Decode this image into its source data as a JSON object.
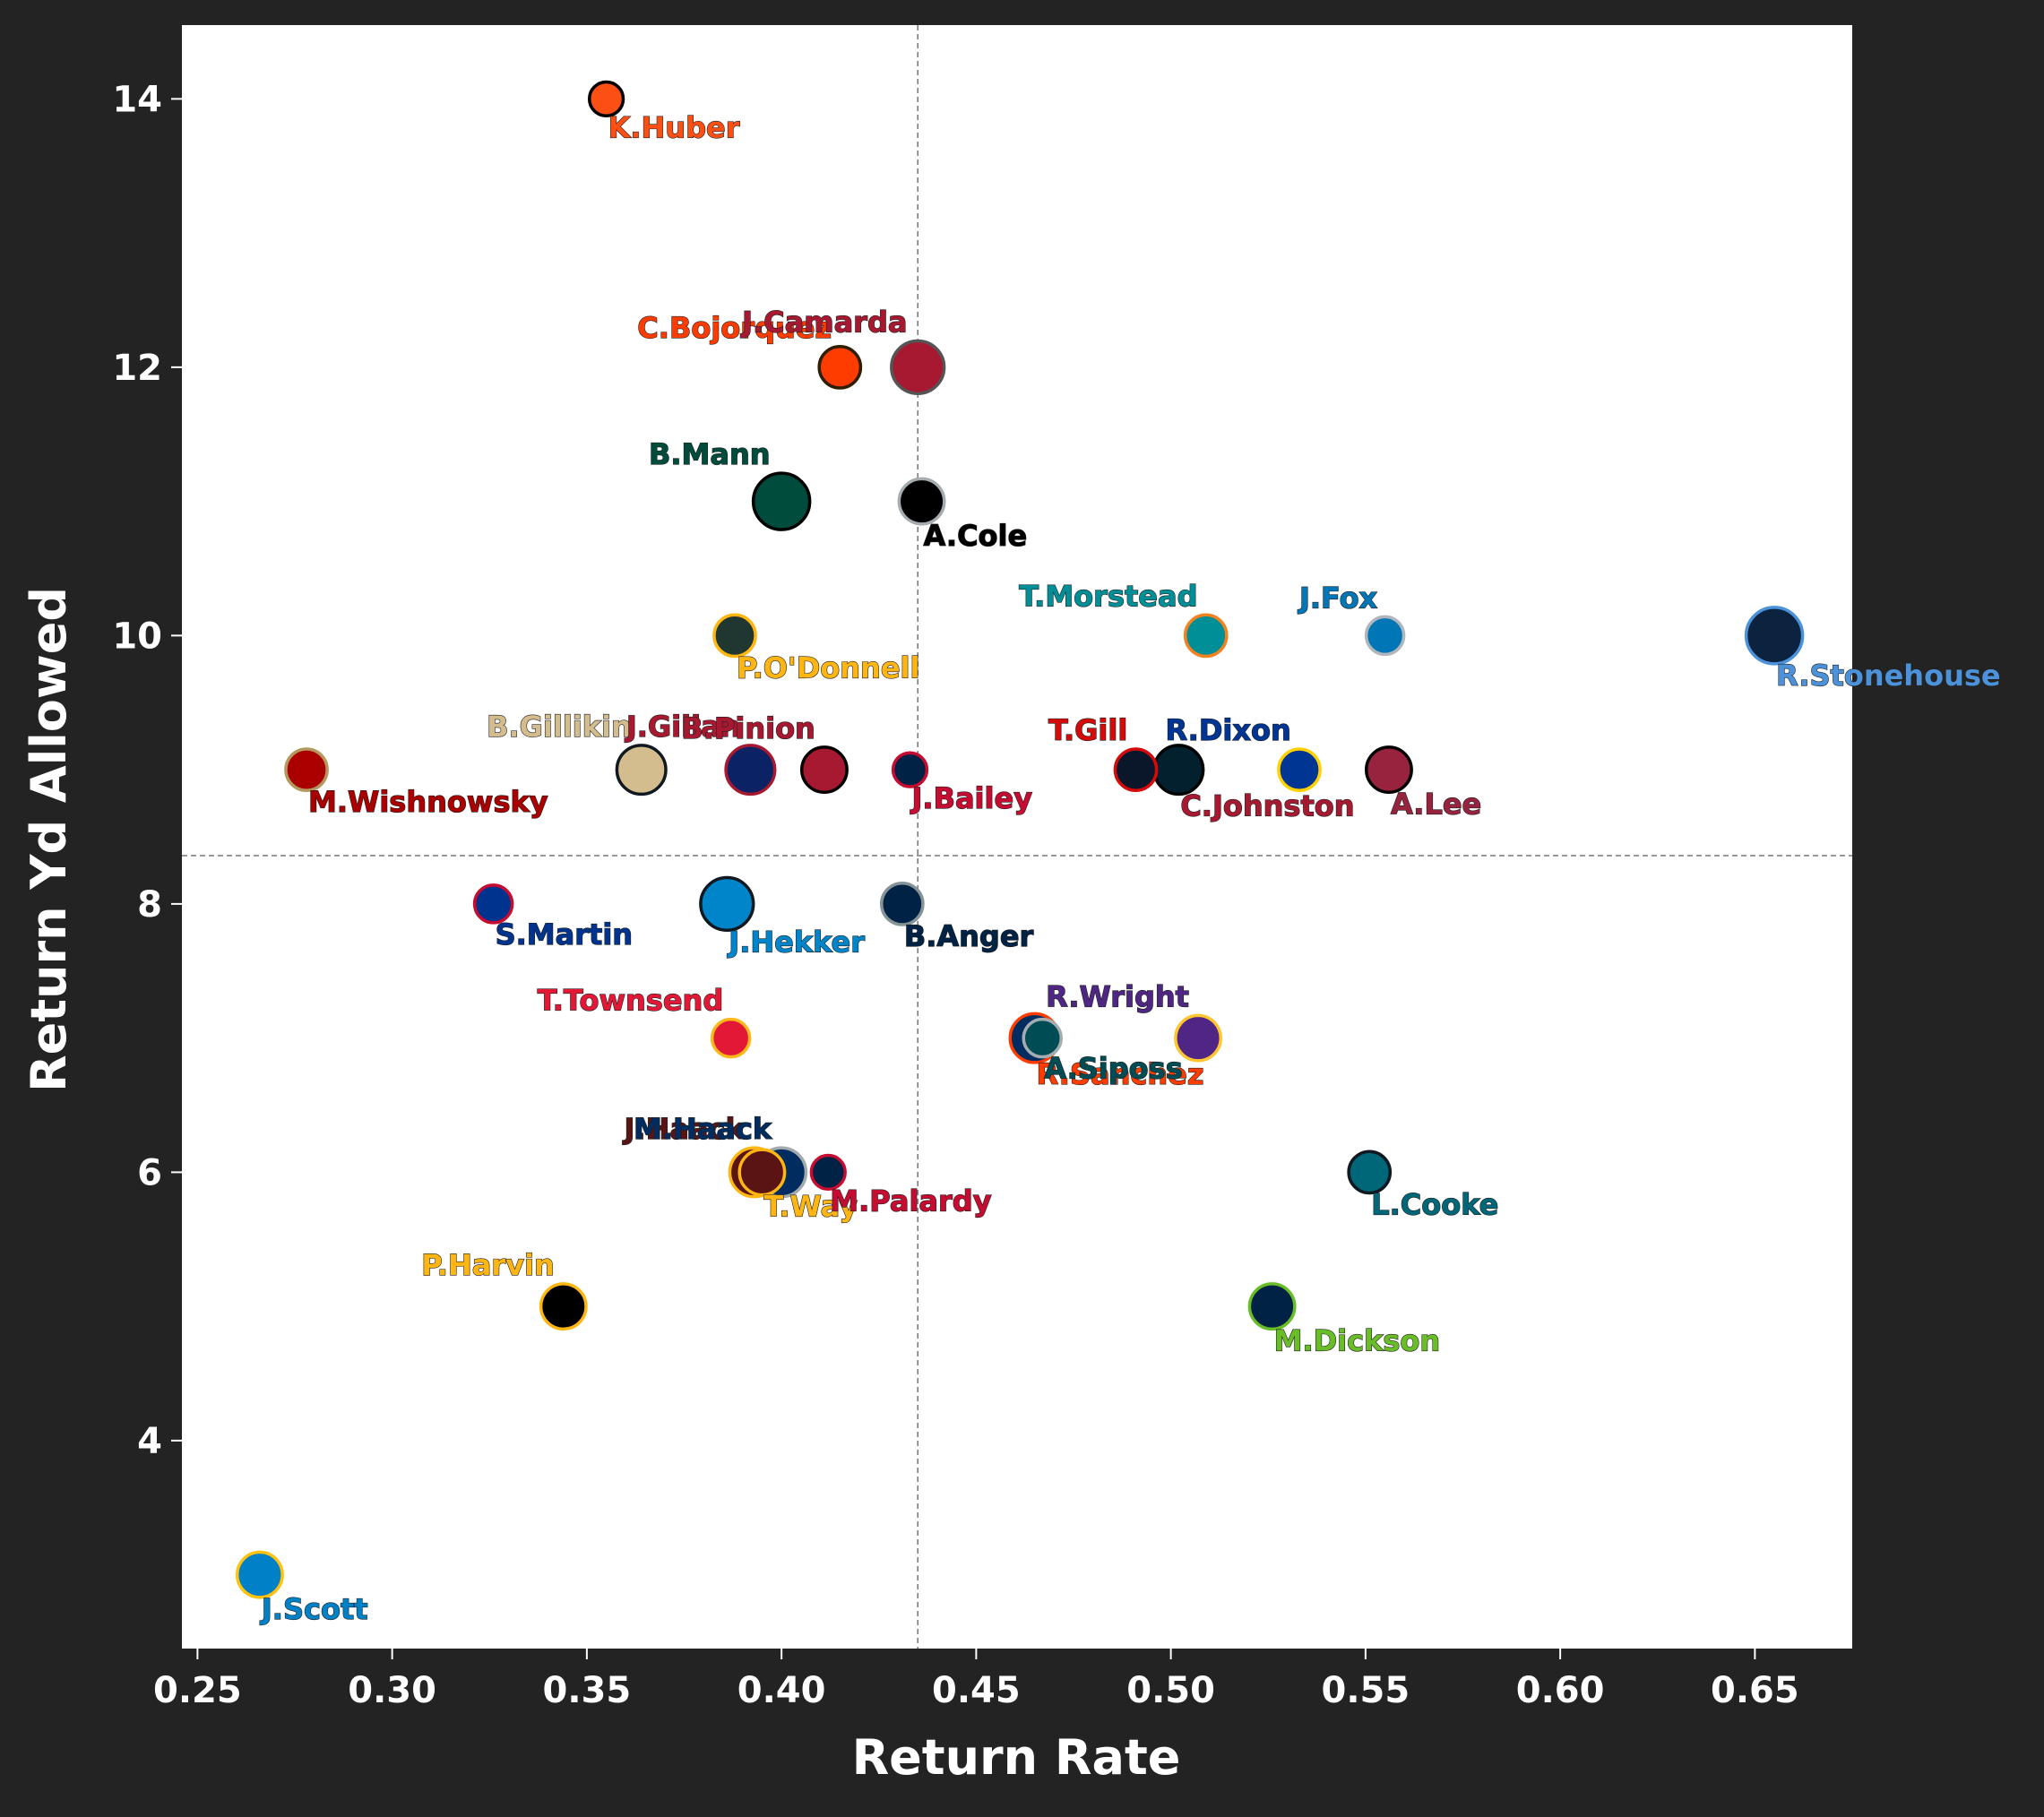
{
  "colors": {
    "figure_background": "#232323",
    "plot_background": "#ffffff",
    "axis_text": "#ffffff",
    "reference_line": "#777777"
  },
  "chart_data": {
    "type": "scatter",
    "title": "",
    "xlabel": "Return Rate",
    "ylabel": "Return Yd Allowed",
    "xlim": [
      0.246,
      0.675
    ],
    "ylim": [
      2.45,
      14.55
    ],
    "xticks": [
      0.25,
      0.3,
      0.35,
      0.4,
      0.45,
      0.5,
      0.55,
      0.6,
      0.65
    ],
    "xtick_labels": [
      "0.25",
      "0.30",
      "0.35",
      "0.40",
      "0.45",
      "0.50",
      "0.55",
      "0.60",
      "0.65"
    ],
    "yticks": [
      4,
      6,
      8,
      10,
      12,
      14
    ],
    "ytick_labels": [
      "4",
      "6",
      "8",
      "10",
      "12",
      "14"
    ],
    "grid": false,
    "reference_lines": {
      "x": 0.435,
      "y": 8.36
    },
    "points": [
      {
        "label": "K.Huber",
        "x": 0.355,
        "y": 14.0,
        "fill": "#FB4F14",
        "edge": "#000000",
        "label_color": "#FB4F14",
        "size": 9,
        "label_pos": "below"
      },
      {
        "label": "C.Bojorquez",
        "x": 0.415,
        "y": 12.0,
        "fill": "#FF3C00",
        "edge": "#311D00",
        "label_color": "#FF3C00",
        "size": 11,
        "label_pos": "above"
      },
      {
        "label": "J.Camarda",
        "x": 0.435,
        "y": 12.0,
        "fill": "#A71930",
        "edge": "#555555",
        "label_color": "#A71930",
        "size": 14,
        "label_pos": "above"
      },
      {
        "label": "B.Mann",
        "x": 0.4,
        "y": 11.0,
        "fill": "#004C3C",
        "edge": "#000000",
        "label_color": "#004C3C",
        "size": 15,
        "label_pos": "above"
      },
      {
        "label": "A.Cole",
        "x": 0.436,
        "y": 11.0,
        "fill": "#000000",
        "edge": "#A5ACAF",
        "label_color": "#000000",
        "size": 12,
        "label_pos": "below"
      },
      {
        "label": "P.O'Donnell",
        "x": 0.388,
        "y": 10.0,
        "fill": "#203731",
        "edge": "#FFB612",
        "label_color": "#FFB612",
        "size": 11,
        "label_pos": "below"
      },
      {
        "label": "T.Morstead",
        "x": 0.509,
        "y": 10.0,
        "fill": "#008E97",
        "edge": "#F58220",
        "label_color": "#008E97",
        "size": 11,
        "label_pos": "above"
      },
      {
        "label": "J.Fox",
        "x": 0.555,
        "y": 10.0,
        "fill": "#0076B6",
        "edge": "#B0B7BC",
        "label_color": "#0076B6",
        "size": 10,
        "label_pos": "above"
      },
      {
        "label": "R.Stonehouse",
        "x": 0.655,
        "y": 10.0,
        "fill": "#0C2340",
        "edge": "#4B92DB",
        "label_color": "#4B92DB",
        "size": 15,
        "label_pos": "below"
      },
      {
        "label": "M.Wishnowsky",
        "x": 0.278,
        "y": 9.0,
        "fill": "#AA0000",
        "edge": "#B3995D",
        "label_color": "#AA0000",
        "size": 11,
        "label_pos": "below"
      },
      {
        "label": "B.Gillikin",
        "x": 0.364,
        "y": 9.0,
        "fill": "#D3BC8D",
        "edge": "#101820",
        "label_color": "#D3BC8D",
        "size": 13,
        "label_pos": "above"
      },
      {
        "label": "J.Gillan",
        "x": 0.392,
        "y": 9.0,
        "fill": "#0B2265",
        "edge": "#A71930",
        "label_color": "#A71930",
        "size": 13,
        "label_pos": "above"
      },
      {
        "label": "B.Pinion",
        "x": 0.411,
        "y": 9.0,
        "fill": "#A71930",
        "edge": "#000000",
        "label_color": "#A71930",
        "size": 12,
        "label_pos": "above"
      },
      {
        "label": "J.Bailey",
        "x": 0.433,
        "y": 9.0,
        "fill": "#002244",
        "edge": "#C60C30",
        "label_color": "#C60C30",
        "size": 9,
        "label_pos": "below"
      },
      {
        "label": "T.Gill",
        "x": 0.491,
        "y": 9.0,
        "fill": "#0A162A",
        "edge": "#D50A0A",
        "label_color": "#D50A0A",
        "size": 11,
        "label_pos": "above"
      },
      {
        "label": "C.Johnston",
        "x": 0.502,
        "y": 9.0,
        "fill": "#03202F",
        "edge": "#000000",
        "label_color": "#A71930",
        "size": 13,
        "label_pos": "below"
      },
      {
        "label": "R.Dixon",
        "x": 0.533,
        "y": 9.0,
        "fill": "#003594",
        "edge": "#FFD100",
        "label_color": "#003594",
        "size": 11,
        "label_pos": "above"
      },
      {
        "label": "A.Lee",
        "x": 0.556,
        "y": 9.0,
        "fill": "#97233F",
        "edge": "#000000",
        "label_color": "#97233F",
        "size": 12,
        "label_pos": "below"
      },
      {
        "label": "S.Martin",
        "x": 0.326,
        "y": 8.0,
        "fill": "#00338D",
        "edge": "#C60C30",
        "label_color": "#00338D",
        "size": 10,
        "label_pos": "below"
      },
      {
        "label": "J.Hekker",
        "x": 0.386,
        "y": 8.0,
        "fill": "#0085CA",
        "edge": "#101820",
        "label_color": "#0085CA",
        "size": 14,
        "label_pos": "below"
      },
      {
        "label": "B.Anger",
        "x": 0.431,
        "y": 8.0,
        "fill": "#002244",
        "edge": "#869397",
        "label_color": "#002244",
        "size": 11,
        "label_pos": "below"
      },
      {
        "label": "T.Townsend",
        "x": 0.387,
        "y": 7.0,
        "fill": "#E31837",
        "edge": "#FFB81C",
        "label_color": "#E31837",
        "size": 10,
        "label_pos": "above"
      },
      {
        "label": "R.Sanchez",
        "x": 0.465,
        "y": 7.0,
        "fill": "#002C5F",
        "edge": "#FF3C00",
        "label_color": "#FF3C00",
        "size": 13,
        "label_pos": "below"
      },
      {
        "label": "A.Siposs",
        "x": 0.467,
        "y": 7.0,
        "fill": "#004C54",
        "edge": "#A5ACAF",
        "label_color": "#004C54",
        "size": 10,
        "label_pos": "below"
      },
      {
        "label": "R.Wright",
        "x": 0.507,
        "y": 7.0,
        "fill": "#4F2683",
        "edge": "#FFC62F",
        "label_color": "#4F2683",
        "size": 12,
        "label_pos": "above"
      },
      {
        "label": "J.Haack",
        "x": 0.393,
        "y": 6.0,
        "fill": "#5A1414",
        "edge": "#FFB612",
        "label_color": "#5A1414",
        "size": 13,
        "label_pos": "above"
      },
      {
        "label": "M.Haack",
        "x": 0.4,
        "y": 6.0,
        "fill": "#002C5F",
        "edge": "#A2AAAD",
        "label_color": "#002C5F",
        "size": 13,
        "label_pos": "above"
      },
      {
        "label": "T.Way",
        "x": 0.395,
        "y": 6.0,
        "fill": "#5A1414",
        "edge": "#FFB612",
        "label_color": "#FFB612",
        "size": 12,
        "label_pos": "below"
      },
      {
        "label": "M.Palardy",
        "x": 0.412,
        "y": 6.0,
        "fill": "#002244",
        "edge": "#C60C30",
        "label_color": "#C60C30",
        "size": 9,
        "label_pos": "below"
      },
      {
        "label": "L.Cooke",
        "x": 0.551,
        "y": 6.0,
        "fill": "#006778",
        "edge": "#101820",
        "label_color": "#006778",
        "size": 11,
        "label_pos": "below"
      },
      {
        "label": "P.Harvin",
        "x": 0.344,
        "y": 5.0,
        "fill": "#000000",
        "edge": "#FFB612",
        "label_color": "#FFB612",
        "size": 12,
        "label_pos": "above"
      },
      {
        "label": "M.Dickson",
        "x": 0.526,
        "y": 5.0,
        "fill": "#002244",
        "edge": "#69BE28",
        "label_color": "#69BE28",
        "size": 12,
        "label_pos": "below"
      },
      {
        "label": "J.Scott",
        "x": 0.266,
        "y": 3.0,
        "fill": "#0080C6",
        "edge": "#FFC20E",
        "label_color": "#0080C6",
        "size": 12,
        "label_pos": "below"
      }
    ]
  }
}
